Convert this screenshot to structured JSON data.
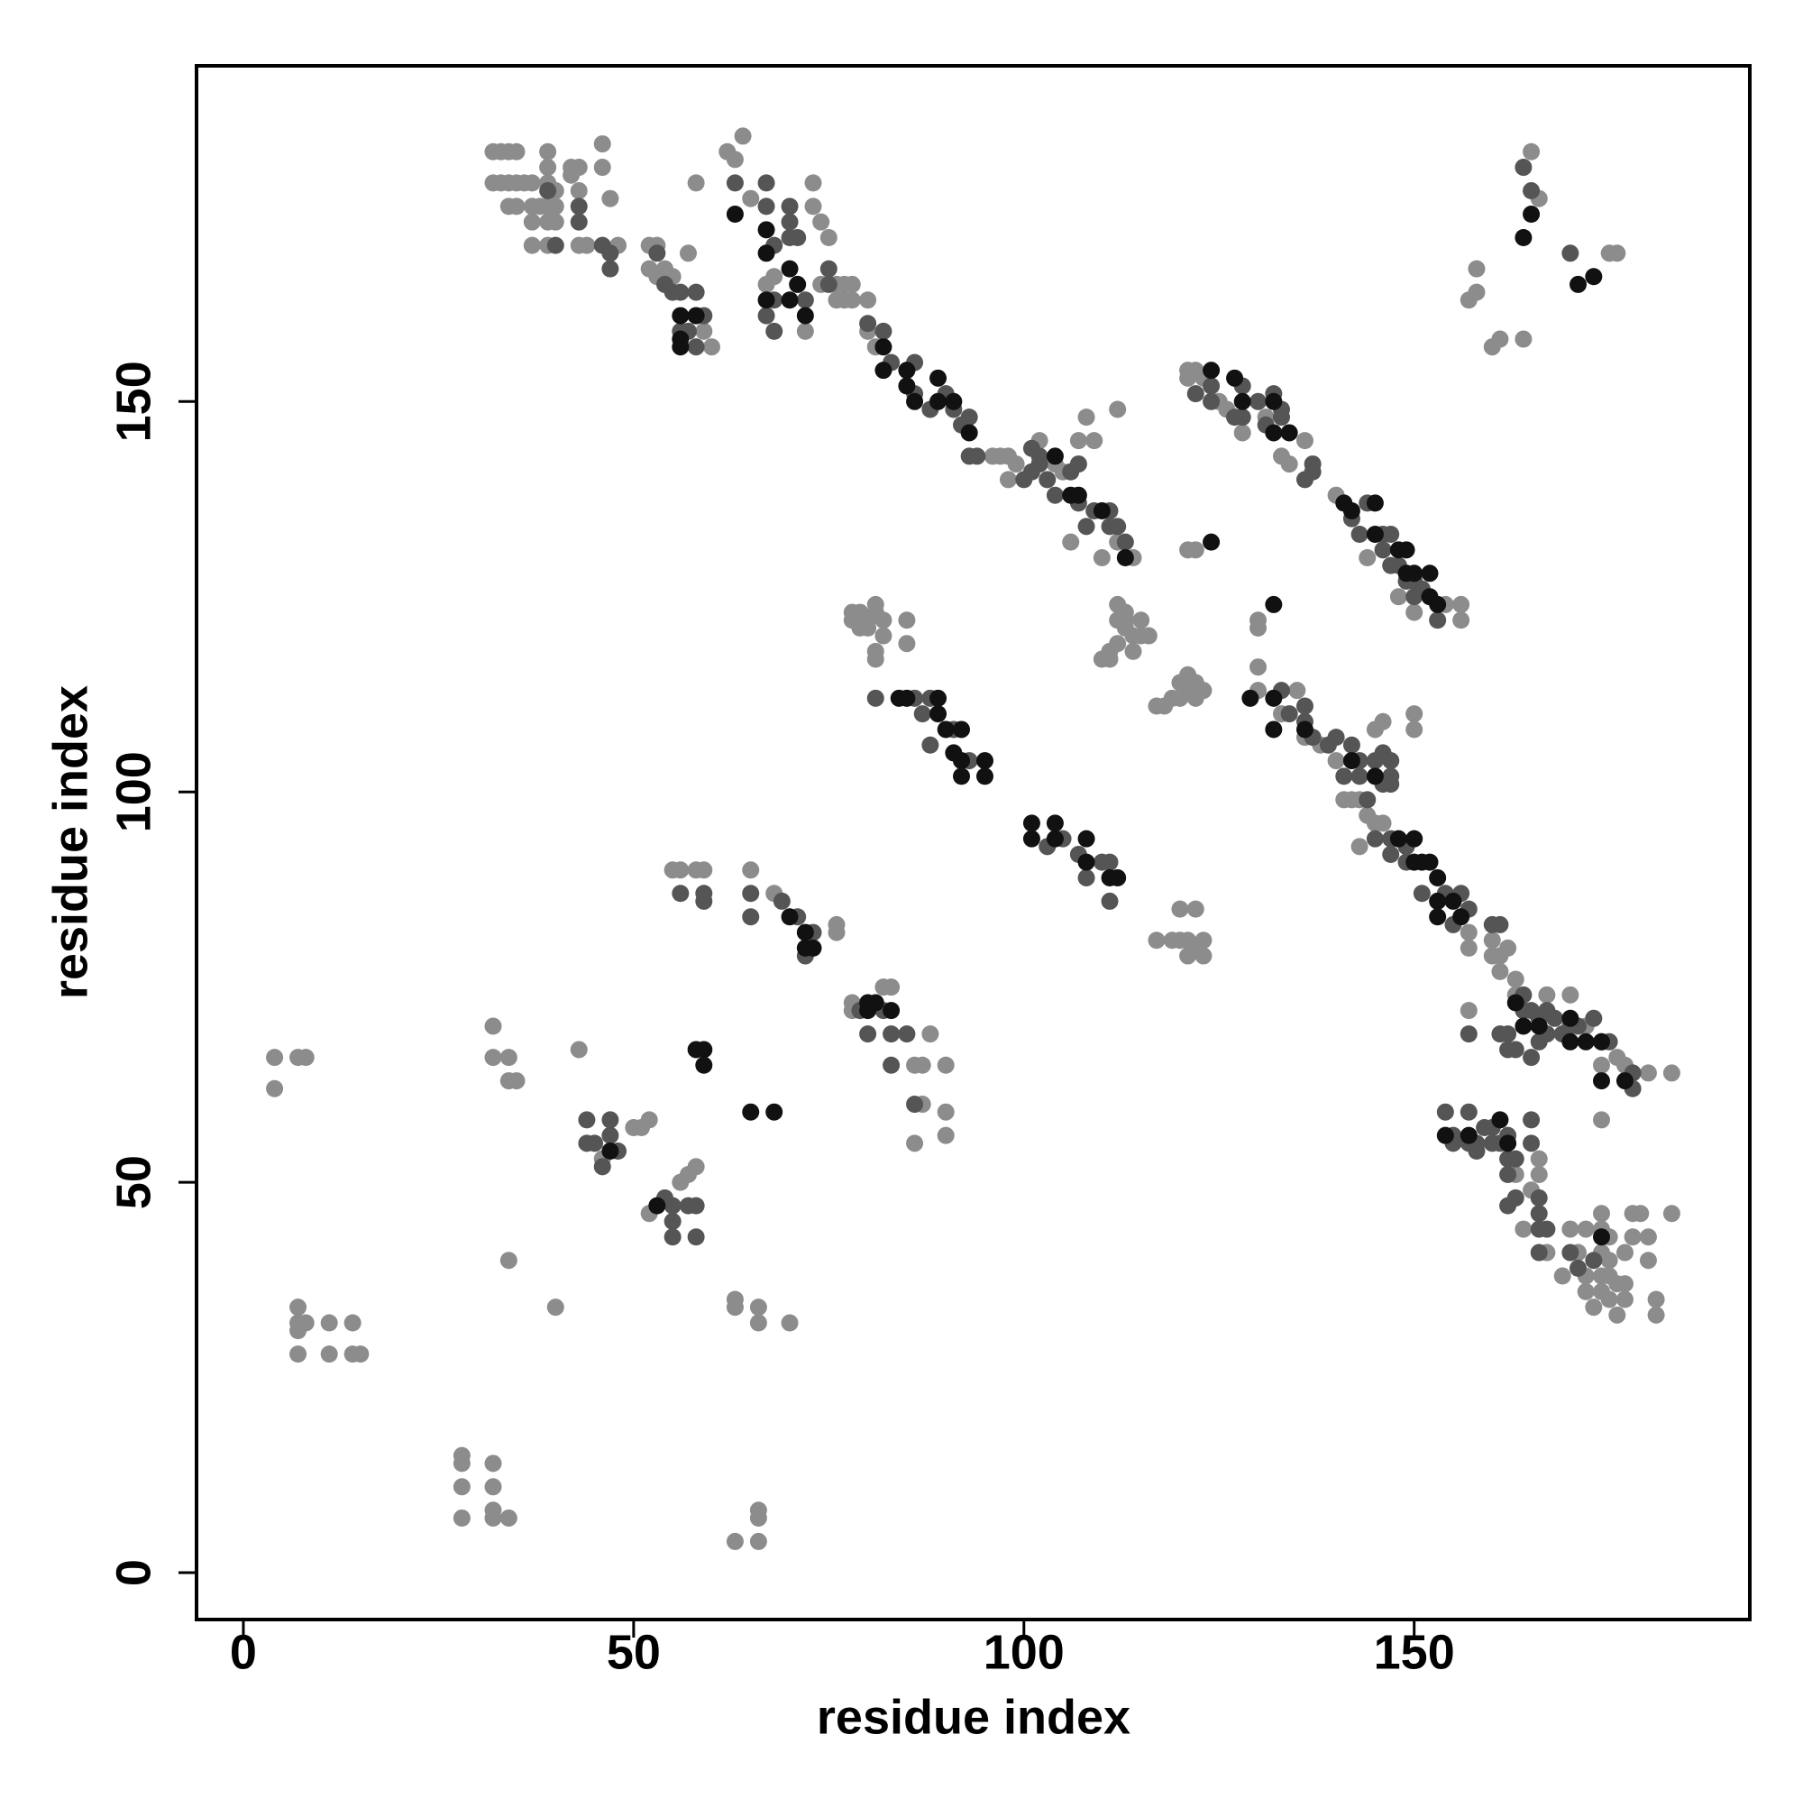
{
  "chart_data": {
    "type": "scatter",
    "xlabel": "residue index",
    "ylabel": "residue index",
    "xlim": [
      -6,
      193
    ],
    "ylim": [
      -6,
      193
    ],
    "xticks": [
      0,
      50,
      100,
      150
    ],
    "yticks": [
      0,
      50,
      100,
      150
    ],
    "series": [
      {
        "color": "#8c8c8c",
        "x": [
          4,
          4,
          7,
          8,
          7,
          7,
          7,
          7,
          8,
          11,
          11,
          14,
          14,
          15,
          28,
          28,
          28,
          28,
          32,
          32,
          32,
          32,
          34,
          32,
          32,
          34,
          34,
          35,
          34,
          40,
          63,
          66,
          66,
          66,
          63,
          63,
          66,
          66,
          70,
          43,
          50,
          51,
          52,
          52,
          56,
          57,
          58,
          46,
          55,
          56,
          58,
          59,
          65,
          76,
          76,
          68,
          78,
          78,
          82,
          83,
          88,
          86,
          87,
          90,
          86,
          90,
          87,
          90,
          78,
          78,
          79,
          79,
          80,
          80,
          81,
          81,
          82,
          82,
          85,
          85,
          81,
          81,
          117,
          119,
          120,
          121,
          122,
          123,
          120,
          122,
          121,
          123,
          32,
          33,
          34,
          35,
          39,
          39,
          42,
          42,
          43,
          46,
          46,
          32,
          33,
          34,
          35,
          36,
          37,
          39,
          40,
          43,
          47,
          34,
          35,
          37,
          38,
          39,
          40,
          37,
          39,
          40,
          37,
          39,
          43,
          44,
          48,
          52,
          53,
          52,
          53,
          54,
          55,
          57,
          59,
          60,
          58,
          62,
          63,
          64,
          67,
          68,
          73,
          73,
          74,
          75,
          74,
          76,
          77,
          78,
          76,
          77,
          78,
          72,
          80,
          80,
          81,
          96,
          97,
          98,
          99,
          98,
          102,
          104,
          105,
          107,
          108,
          109,
          112,
          106,
          114,
          110,
          112,
          112,
          113,
          112,
          113,
          114,
          114,
          111,
          110,
          111,
          112,
          113,
          115,
          115,
          116,
          117,
          118,
          119,
          120,
          120,
          121,
          121,
          122,
          122,
          123,
          122,
          121,
          121,
          122,
          121,
          123,
          125,
          126,
          128,
          131,
          136,
          133,
          134,
          130,
          130,
          130,
          130,
          135,
          133,
          136,
          138,
          140,
          145,
          146,
          150,
          150,
          141,
          142,
          143,
          144,
          145,
          146,
          143,
          157,
          157,
          160,
          160,
          161,
          161,
          162,
          163,
          163,
          167,
          170,
          172,
          174,
          176,
          177,
          180,
          183,
          174,
          157,
          140,
          144,
          148,
          150,
          154,
          156,
          156,
          163,
          166,
          166,
          165,
          164,
          167,
          169,
          170,
          171,
          172,
          172,
          172,
          174,
          174,
          174,
          174,
          175,
          175,
          175,
          175,
          176,
          176,
          177,
          177,
          177,
          178,
          178,
          179,
          180,
          180,
          181,
          181,
          183,
          174,
          173,
          157,
          158,
          158,
          160,
          161,
          164,
          165,
          166,
          175,
          176,
          65
        ],
        "y": [
          66,
          62,
          66,
          66,
          34,
          32,
          31,
          28,
          32,
          32,
          28,
          32,
          28,
          28,
          15,
          14,
          11,
          7,
          14,
          11,
          8,
          7,
          7,
          70,
          66,
          66,
          63,
          63,
          40,
          34,
          4,
          4,
          7,
          8,
          35,
          34,
          34,
          32,
          32,
          67,
          57,
          57,
          58,
          46,
          50,
          51,
          52,
          53,
          90,
          90,
          90,
          90,
          90,
          83,
          82,
          87,
          73,
          72,
          75,
          75,
          69,
          65,
          65,
          65,
          55,
          56,
          60,
          59,
          123,
          122,
          121,
          123,
          122,
          121,
          124,
          123,
          122,
          120,
          122,
          119,
          118,
          117,
          81,
          81,
          81,
          81,
          80,
          81,
          85,
          85,
          79,
          79,
          182,
          182,
          182,
          182,
          182,
          180,
          180,
          179,
          180,
          183,
          180,
          178,
          178,
          178,
          178,
          178,
          178,
          178,
          177,
          177,
          176,
          175,
          175,
          175,
          175,
          175,
          175,
          173,
          173,
          173,
          170,
          170,
          170,
          170,
          170,
          170,
          170,
          167,
          166,
          167,
          166,
          169,
          159,
          157,
          178,
          182,
          181,
          184,
          165,
          166,
          178,
          175,
          173,
          171,
          165,
          165,
          165,
          165,
          163,
          163,
          163,
          159,
          163,
          159,
          157,
          143,
          143,
          143,
          142,
          140,
          145,
          142,
          141,
          145,
          148,
          145,
          149,
          132,
          130,
          130,
          132,
          124,
          122,
          122,
          121,
          120,
          118,
          117,
          117,
          118,
          119,
          123,
          120,
          122,
          120,
          111,
          111,
          112,
          114,
          112,
          115,
          113,
          114,
          112,
          113,
          131,
          131,
          154,
          154,
          153,
          153,
          150,
          149,
          146,
          148,
          145,
          143,
          142,
          122,
          121,
          116,
          113,
          113,
          110,
          107,
          106,
          104,
          108,
          109,
          110,
          108,
          99,
          99,
          99,
          97,
          96,
          96,
          93,
          82,
          80,
          81,
          79,
          79,
          77,
          80,
          76,
          74,
          74,
          74,
          70,
          65,
          66,
          65,
          64,
          64,
          58,
          72,
          138,
          130,
          125,
          123,
          124,
          124,
          122,
          51,
          53,
          51,
          49,
          44,
          41,
          38,
          44,
          41,
          44,
          38,
          36,
          44,
          41,
          38,
          36,
          43,
          40,
          38,
          35,
          37,
          33,
          41,
          37,
          35,
          46,
          43,
          46,
          43,
          40,
          35,
          33,
          46,
          46,
          34,
          163,
          164,
          167,
          157,
          158,
          158,
          182,
          176,
          169,
          169,
          176
        ]
      },
      {
        "color": "#555555",
        "x": [
          44,
          44,
          45,
          47,
          47,
          48,
          46,
          55,
          55,
          58,
          58,
          55,
          57,
          54,
          56,
          59,
          59,
          65,
          69,
          71,
          73,
          65,
          72,
          79,
          82,
          83,
          85,
          80,
          83,
          86,
          81,
          86,
          87,
          88,
          88,
          91,
          93,
          103,
          105,
          107,
          110,
          111,
          108,
          111,
          43,
          39,
          43,
          40,
          46,
          47,
          47,
          53,
          54,
          55,
          56,
          58,
          58,
          59,
          57,
          58,
          56,
          63,
          67,
          67,
          70,
          70,
          70,
          71,
          68,
          68,
          67,
          75,
          75,
          68,
          72,
          80,
          82,
          83,
          86,
          86,
          88,
          90,
          91,
          92,
          93,
          93,
          94,
          100,
          101,
          101,
          102,
          102,
          103,
          104,
          106,
          107,
          107,
          109,
          111,
          111,
          112,
          113,
          108,
          122,
          124,
          124,
          127,
          128,
          128,
          130,
          131,
          132,
          133,
          133,
          136,
          137,
          137,
          133,
          134,
          136,
          136,
          137,
          140,
          139,
          142,
          143,
          143,
          141,
          145,
          146,
          146,
          147,
          147,
          147,
          144,
          145,
          147,
          149,
          147,
          149,
          151,
          154,
          156,
          157,
          155,
          160,
          161,
          164,
          164,
          165,
          166,
          167,
          168,
          170,
          171,
          173,
          174,
          175,
          178,
          178,
          157,
          161,
          162,
          162,
          163,
          166,
          167,
          169,
          165,
          142,
          143,
          144,
          146,
          146,
          147,
          147,
          148,
          149,
          150,
          150,
          151,
          153,
          154,
          155,
          155,
          157,
          157,
          158,
          158,
          159,
          160,
          160,
          161,
          162,
          162,
          163,
          162,
          165,
          165,
          166,
          166,
          163,
          162,
          166,
          166,
          167,
          170,
          171,
          173,
          164,
          165,
          170
        ],
        "y": [
          58,
          55,
          55,
          58,
          56,
          54,
          52,
          47,
          45,
          47,
          43,
          43,
          47,
          48,
          87,
          87,
          86,
          87,
          86,
          84,
          82,
          84,
          79,
          72,
          72,
          69,
          69,
          69,
          65,
          60,
          112,
          112,
          110,
          112,
          106,
          108,
          104,
          93,
          94,
          92,
          91,
          91,
          89,
          86,
          175,
          177,
          173,
          170,
          170,
          169,
          167,
          169,
          165,
          164,
          164,
          164,
          161,
          161,
          159,
          157,
          159,
          178,
          178,
          175,
          175,
          173,
          171,
          171,
          170,
          163,
          161,
          167,
          165,
          159,
          163,
          160,
          159,
          155,
          155,
          151,
          149,
          151,
          149,
          147,
          148,
          143,
          143,
          140,
          144,
          141,
          143,
          142,
          140,
          138,
          141,
          137,
          142,
          136,
          136,
          134,
          134,
          132,
          134,
          151,
          152,
          150,
          148,
          148,
          152,
          150,
          147,
          151,
          149,
          148,
          140,
          141,
          142,
          113,
          110,
          111,
          109,
          107,
          107,
          106,
          106,
          104,
          102,
          102,
          104,
          101,
          105,
          104,
          102,
          101,
          99,
          94,
          94,
          93,
          92,
          91,
          87,
          87,
          87,
          85,
          83,
          83,
          83,
          74,
          72,
          72,
          71,
          72,
          71,
          70,
          70,
          71,
          68,
          68,
          64,
          62,
          69,
          69,
          69,
          67,
          67,
          68,
          69,
          69,
          66,
          135,
          133,
          137,
          133,
          131,
          133,
          129,
          129,
          127,
          127,
          125,
          126,
          122,
          59,
          56,
          55,
          59,
          55,
          55,
          54,
          57,
          57,
          55,
          55,
          56,
          53,
          53,
          51,
          55,
          58,
          48,
          46,
          48,
          47,
          44,
          41,
          44,
          41,
          39,
          40,
          180,
          177,
          169
        ]
      },
      {
        "color": "#111111",
        "x": [
          67,
          67,
          70,
          71,
          67,
          70,
          72,
          56,
          58,
          56,
          56,
          82,
          82,
          85,
          85,
          89,
          86,
          89,
          91,
          93,
          104,
          107,
          106,
          110,
          113,
          124,
          127,
          128,
          132,
          132,
          134,
          124,
          132,
          141,
          142,
          145,
          145,
          148,
          149,
          149,
          150,
          152,
          152,
          153,
          84,
          85,
          89,
          89,
          90,
          92,
          91,
          92,
          95,
          92,
          95,
          101,
          104,
          101,
          104,
          108,
          108,
          111,
          112,
          129,
          132,
          132,
          136,
          142,
          145,
          148,
          150,
          151,
          152,
          153,
          153,
          155,
          153,
          156,
          163,
          164,
          166,
          170,
          170,
          172,
          174,
          174,
          177,
          161,
          162,
          157,
          154,
          174,
          164,
          165,
          171,
          173,
          80,
          81,
          80,
          83,
          72,
          72,
          73,
          58,
          59,
          59,
          65,
          68,
          53,
          47,
          70,
          150,
          63
        ],
        "y": [
          172,
          169,
          167,
          165,
          163,
          163,
          161,
          161,
          161,
          158,
          157,
          157,
          154,
          154,
          152,
          153,
          150,
          150,
          150,
          146,
          143,
          138,
          138,
          136,
          130,
          154,
          153,
          150,
          150,
          146,
          146,
          132,
          124,
          137,
          136,
          137,
          133,
          131,
          131,
          128,
          128,
          128,
          125,
          124,
          112,
          112,
          112,
          110,
          108,
          108,
          105,
          104,
          104,
          102,
          102,
          96,
          96,
          94,
          94,
          94,
          91,
          89,
          89,
          112,
          112,
          108,
          108,
          104,
          102,
          94,
          94,
          91,
          91,
          89,
          86,
          86,
          84,
          84,
          73,
          70,
          70,
          71,
          68,
          68,
          68,
          63,
          63,
          58,
          55,
          56,
          56,
          43,
          171,
          174,
          165,
          166,
          73,
          73,
          72,
          72,
          82,
          80,
          80,
          67,
          67,
          65,
          59,
          59,
          47,
          54,
          84,
          91,
          174
        ]
      }
    ]
  }
}
